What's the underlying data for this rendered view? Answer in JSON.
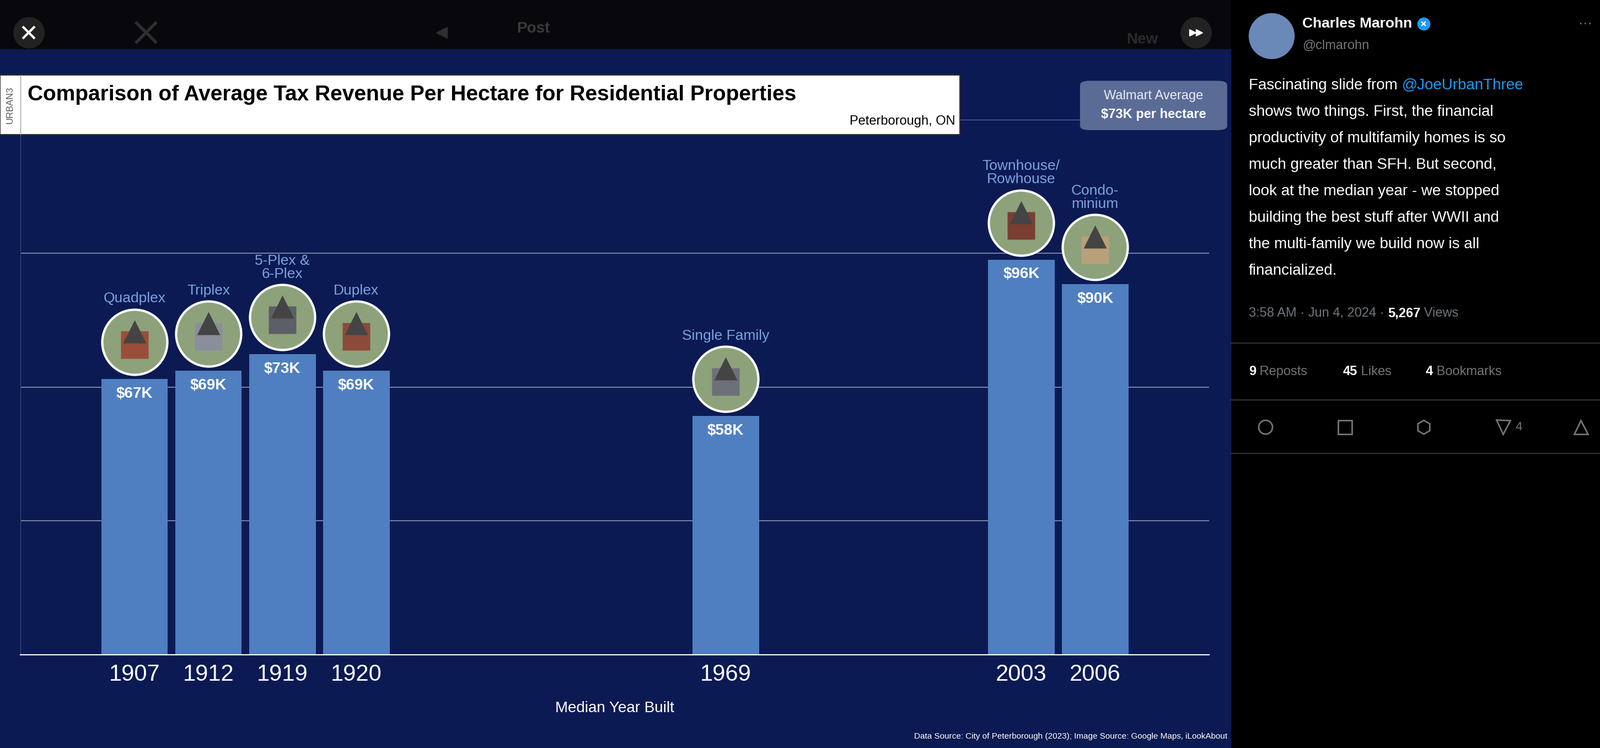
{
  "ui": {
    "header_title": "Post",
    "header_button": "New"
  },
  "chart_data": {
    "type": "bar",
    "title": "Comparison of Average Tax Revenue Per Hectare for Residential Properties",
    "subtitle": "Peterborough, ON",
    "brand": "URBAN3",
    "x_label": "Median Year Built",
    "categories": [
      "1907",
      "1912",
      "1919",
      "1920",
      null,
      null,
      null,
      null,
      "1969",
      null,
      null,
      null,
      "2003",
      "2006"
    ],
    "bar_names": [
      "Quadplex",
      "Triplex",
      "5-Plex &\n6-Plex",
      "Duplex",
      null,
      null,
      null,
      null,
      "Single Family",
      null,
      null,
      null,
      "Townhouse/\nRowhouse",
      "Condo-\nminium"
    ],
    "values": [
      67,
      69,
      73,
      69,
      null,
      null,
      null,
      null,
      58,
      null,
      null,
      null,
      96,
      90
    ],
    "value_labels": [
      "$67K",
      "$69K",
      "$73K",
      "$69K",
      null,
      null,
      null,
      null,
      "$58K",
      null,
      null,
      null,
      "$96K",
      "$90K"
    ],
    "color": "#4f7fc0",
    "ylim": [
      0,
      130
    ],
    "yticks": [
      0,
      32.5,
      65,
      97.5,
      130
    ],
    "grid": true,
    "data_labels": true,
    "tick_labels": "x",
    "reference": {
      "label": "Walmart Average",
      "text": "$73K per hectare"
    },
    "source": "Data Source: City of Peterborough (2023); Image Source: Google Maps, iLookAbout"
  },
  "post": {
    "author": "Charles Marohn",
    "handle": "@clmarohn",
    "menu": "···",
    "text_lines": [
      "Fascinating slide from @JoeUrbanThree",
      "shows two things. First, the financial",
      "productivity of multifamily homes is so",
      "much greater than SFH. But second,",
      "look at the median year - we stopped",
      "building the best stuff after WWII and",
      "the multi-family we build now is all",
      "financialized."
    ],
    "timestamp": "3:58 AM · Jun 4, 2024 ·",
    "views": "5,267",
    "views_label": "Views",
    "stats": [
      {
        "count": 9,
        "label": "Reposts"
      },
      {
        "count": 45,
        "label": "Likes"
      },
      {
        "count": 4,
        "label": "Bookmarks"
      }
    ],
    "bookmark_button_count": 4
  }
}
